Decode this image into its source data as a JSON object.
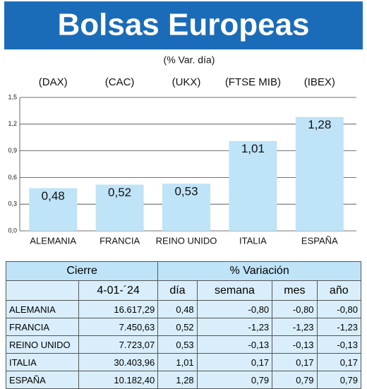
{
  "chart_data": {
    "type": "bar",
    "title": "Bolsas Europeas",
    "subtitle": "(% Var. día)",
    "indices": [
      "(DAX)",
      "(CAC)",
      "(UKX)",
      "(FTSE MIB)",
      "(IBEX)"
    ],
    "categories": [
      "ALEMANIA",
      "FRANCIA",
      "REINO UNIDO",
      "ITALIA",
      "ESPAÑA"
    ],
    "values": [
      0.48,
      0.52,
      0.53,
      1.01,
      1.28
    ],
    "value_labels": [
      "0,48",
      "0,52",
      "0,53",
      "1,01",
      "1,28"
    ],
    "color": "#bfe3f7",
    "ylim": [
      0,
      1.5
    ],
    "yticks": [
      {
        "value": 0,
        "label": "0,0"
      },
      {
        "value": 0.3,
        "label": "0,3"
      },
      {
        "value": 0.6,
        "label": "0,6"
      },
      {
        "value": 0.9,
        "label": "0,9"
      },
      {
        "value": 1.2,
        "label": "1,2"
      },
      {
        "value": 1.5,
        "label": "1,5"
      }
    ],
    "grid": true
  },
  "table": {
    "header": [
      "Cierre",
      "% Variación"
    ],
    "subheader": [
      "4-01-´24",
      "día",
      "semana",
      "mes",
      "año"
    ],
    "rows": [
      [
        "ALEMANIA",
        "16.617,29",
        "0,48",
        "-0,80",
        "-0,80",
        "-0,80"
      ],
      [
        "FRANCIA",
        "7.450,63",
        "0,52",
        "-1,23",
        "-1,23",
        "-1,23"
      ],
      [
        "REINO UNIDO",
        "7.723,07",
        "0,53",
        "-0,13",
        "-0,13",
        "-0,13"
      ],
      [
        "ITALIA",
        "30.403,96",
        "1,01",
        "0,17",
        "0,17",
        "0,17"
      ],
      [
        "ESPAÑA",
        "10.182,40",
        "1,28",
        "0,79",
        "0,79",
        "0,79"
      ]
    ]
  }
}
